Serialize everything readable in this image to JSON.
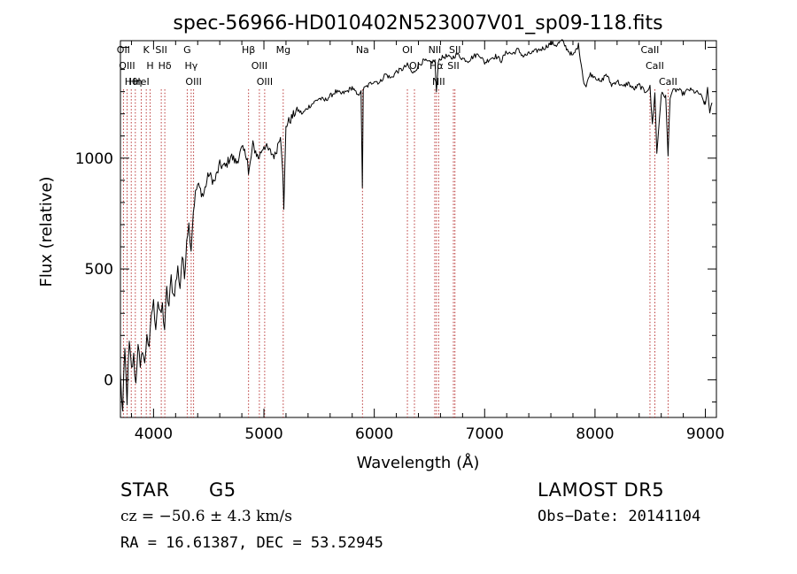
{
  "chart_data": {
    "type": "line",
    "title": "spec-56966-HD010402N523007V01_sp09-118.fits",
    "xlabel": "Wavelength (Å)",
    "ylabel": "Flux (relative)",
    "xlim": [
      3700,
      9100
    ],
    "ylim": [
      -170,
      1530
    ],
    "x_ticks": [
      4000,
      5000,
      6000,
      7000,
      8000,
      9000
    ],
    "y_ticks": [
      0,
      500,
      1000
    ],
    "grid": false,
    "series": [
      {
        "x": [
          3700,
          3720,
          3740,
          3760,
          3780,
          3800,
          3820,
          3840,
          3860,
          3880,
          3900,
          3920,
          3940,
          3960,
          3980,
          4000,
          4020,
          4040,
          4060,
          4080,
          4100,
          4120,
          4140,
          4160,
          4180,
          4200,
          4220,
          4240,
          4260,
          4280,
          4300,
          4320,
          4340,
          4360,
          4380,
          4400,
          4450,
          4500,
          4550,
          4600,
          4650,
          4700,
          4750,
          4800,
          4850,
          4860,
          4900,
          4950,
          5000,
          5050,
          5100,
          5150,
          5170,
          5180,
          5200,
          5250,
          5300,
          5350,
          5400,
          5450,
          5500,
          5550,
          5600,
          5650,
          5700,
          5750,
          5800,
          5850,
          5880,
          5892,
          5900,
          5950,
          6000,
          6050,
          6100,
          6150,
          6200,
          6250,
          6300,
          6350,
          6400,
          6450,
          6500,
          6550,
          6563,
          6580,
          6600,
          6650,
          6700,
          6750,
          6800,
          6850,
          6900,
          6950,
          7000,
          7050,
          7100,
          7150,
          7200,
          7250,
          7300,
          7350,
          7400,
          7450,
          7500,
          7550,
          7600,
          7650,
          7700,
          7750,
          7800,
          7850,
          7900,
          7920,
          7950,
          8000,
          8050,
          8100,
          8150,
          8200,
          8250,
          8300,
          8350,
          8400,
          8450,
          8498,
          8520,
          8542,
          8560,
          8600,
          8640,
          8662,
          8680,
          8700,
          8750,
          8800,
          8850,
          8900,
          8950,
          8990,
          9000,
          9020,
          9040,
          9060
        ],
        "y": [
          20,
          -150,
          130,
          -90,
          160,
          40,
          100,
          -20,
          180,
          30,
          150,
          60,
          220,
          120,
          300,
          340,
          250,
          360,
          280,
          330,
          230,
          400,
          330,
          460,
          380,
          430,
          500,
          420,
          560,
          460,
          640,
          700,
          590,
          760,
          840,
          880,
          830,
          930,
          890,
          970,
          960,
          1010,
          980,
          1040,
          1010,
          920,
          1060,
          1000,
          1060,
          1030,
          1010,
          1110,
          960,
          760,
          1150,
          1180,
          1220,
          1200,
          1230,
          1250,
          1270,
          1260,
          1280,
          1300,
          1290,
          1300,
          1320,
          1280,
          1310,
          860,
          1310,
          1330,
          1350,
          1340,
          1380,
          1360,
          1390,
          1400,
          1420,
          1380,
          1420,
          1440,
          1430,
          1440,
          1290,
          1440,
          1450,
          1460,
          1450,
          1470,
          1450,
          1440,
          1460,
          1470,
          1430,
          1450,
          1460,
          1440,
          1480,
          1470,
          1490,
          1460,
          1470,
          1480,
          1490,
          1500,
          1520,
          1510,
          1530,
          1490,
          1460,
          1510,
          1340,
          1320,
          1380,
          1370,
          1340,
          1380,
          1330,
          1350,
          1320,
          1340,
          1310,
          1330,
          1300,
          1320,
          1150,
          1300,
          1020,
          1290,
          1280,
          1010,
          1280,
          1300,
          1310,
          1290,
          1310,
          1300,
          1290,
          1250,
          1240,
          1320,
          1200,
          1250
        ]
      }
    ],
    "lines": [
      {
        "label": "Hθ",
        "x": 3798
      },
      {
        "label": "OII",
        "x": 3727
      },
      {
        "label": "OIII",
        "x": 3760
      },
      {
        "label": "Hη",
        "x": 3835
      },
      {
        "label": "K",
        "x": 3934
      },
      {
        "label": "HeI",
        "x": 3889
      },
      {
        "label": "H",
        "x": 3969
      },
      {
        "label": "Hδ",
        "x": 4102
      },
      {
        "label": "SII",
        "x": 4070
      },
      {
        "label": "OIII",
        "x": 4363
      },
      {
        "label": "Hγ",
        "x": 4341
      },
      {
        "label": "G",
        "x": 4305
      },
      {
        "label": "OIII",
        "x": 5007
      },
      {
        "label": "OIII",
        "x": 4959
      },
      {
        "label": "Hβ",
        "x": 4861
      },
      {
        "label": "Mg",
        "x": 5175
      },
      {
        "label": "Na",
        "x": 5893
      },
      {
        "label": "OI",
        "x": 6300
      },
      {
        "label": "OI",
        "x": 6364
      },
      {
        "label": "Hα",
        "x": 6563
      },
      {
        "label": "NII",
        "x": 6548
      },
      {
        "label": "NII",
        "x": 6583
      },
      {
        "label": "SII",
        "x": 6717
      },
      {
        "label": "SII",
        "x": 6731
      },
      {
        "label": "CaII",
        "x": 8498
      },
      {
        "label": "CaII",
        "x": 8542
      },
      {
        "label": "CaII",
        "x": 8662
      }
    ]
  },
  "info": {
    "object_class": "STAR",
    "subclass": "G5",
    "survey": "LAMOST DR5",
    "cz": "cz = −50.6 ± 4.3 km/s",
    "obs_date": "Obs−Date: 20141104",
    "coords": "RA =  16.61387, DEC =  53.52945"
  }
}
